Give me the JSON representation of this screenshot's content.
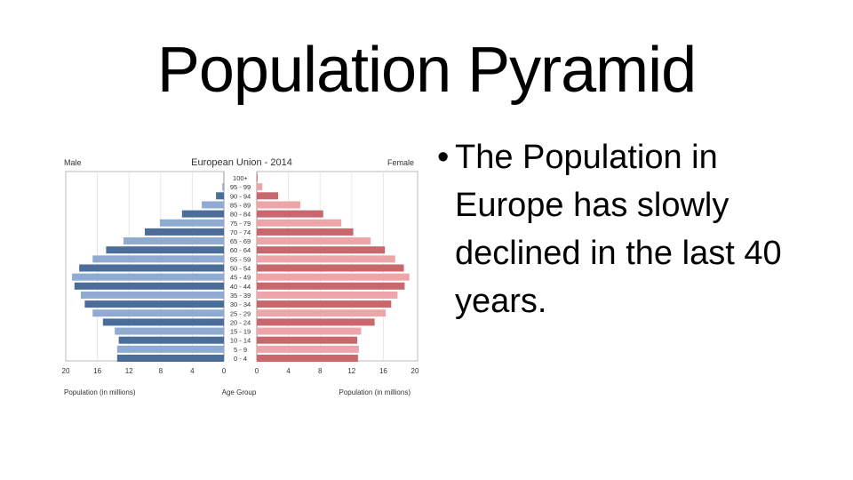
{
  "slide": {
    "title": "Population Pyramid",
    "bullet_glyph": "•",
    "bullet": "The Population in Europe has slowly declined in the last 40 years."
  },
  "colors": {
    "male_dark": "#4a6e99",
    "male_light": "#8fabd1",
    "female_dark": "#c8676c",
    "female_light": "#eda5aa",
    "axis": "#999999"
  },
  "chart_data": {
    "type": "bar",
    "orientation": "horizontal",
    "layout": "population-pyramid",
    "title": "European Union - 2014",
    "left_label": "Male",
    "right_label": "Female",
    "xlabel_left": "Population (in millions)",
    "xlabel_center": "Age Group",
    "xlabel_right": "Population (in millions)",
    "xlim": [
      0,
      20
    ],
    "xticks": [
      0,
      4,
      8,
      12,
      16,
      20
    ],
    "grid": true,
    "categories": [
      "100+",
      "95 - 99",
      "90 - 94",
      "85 - 89",
      "80 - 84",
      "75 - 79",
      "70 - 74",
      "65 - 69",
      "60 - 64",
      "55 - 59",
      "50 - 54",
      "45 - 49",
      "40 - 44",
      "35 - 39",
      "30 - 34",
      "25 - 29",
      "20 - 24",
      "15 - 19",
      "10 - 14",
      "5 - 9",
      "0 - 4"
    ],
    "series": [
      {
        "name": "Male",
        "values": [
          0.02,
          0.2,
          1.0,
          2.8,
          5.3,
          8.1,
          10.0,
          12.7,
          14.9,
          16.6,
          18.3,
          19.2,
          18.9,
          18.1,
          17.6,
          16.6,
          15.3,
          13.8,
          13.3,
          13.5,
          13.5
        ]
      },
      {
        "name": "Female",
        "values": [
          0.1,
          0.7,
          2.7,
          5.5,
          8.4,
          10.7,
          12.2,
          14.4,
          16.2,
          17.5,
          18.6,
          19.3,
          18.7,
          17.8,
          17.0,
          16.3,
          14.9,
          13.2,
          12.7,
          12.9,
          12.8
        ]
      }
    ]
  }
}
